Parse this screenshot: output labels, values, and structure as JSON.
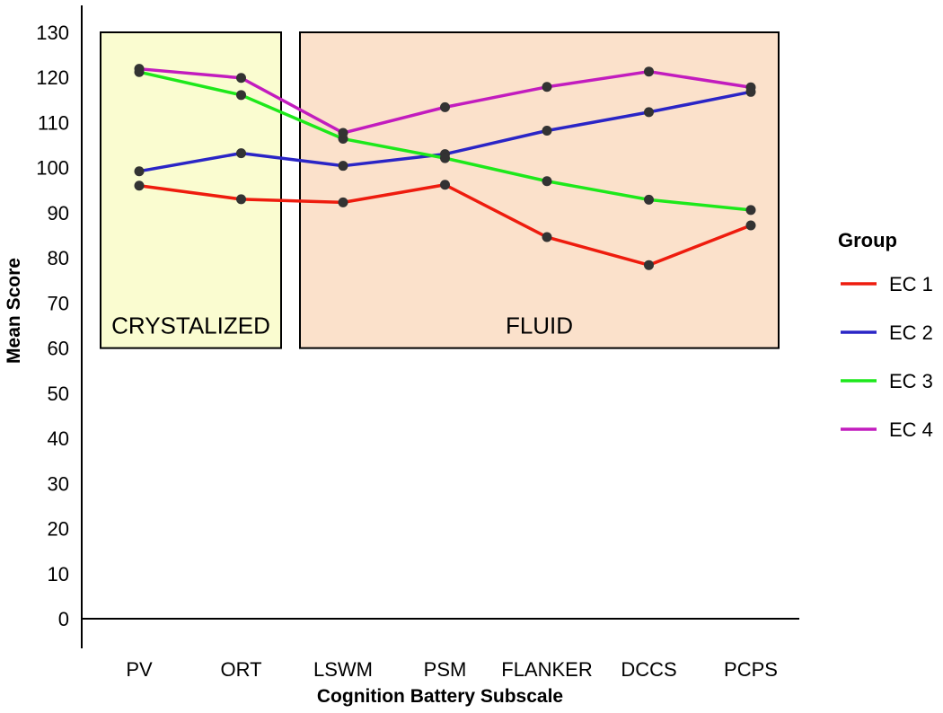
{
  "chart_data": {
    "type": "line",
    "xlabel": "Cognition Battery Subscale",
    "ylabel": "Mean Score",
    "ylim": [
      0,
      130
    ],
    "yticks": [
      0,
      10,
      20,
      30,
      40,
      50,
      60,
      70,
      80,
      90,
      100,
      110,
      120,
      130
    ],
    "categories": [
      "PV",
      "ORT",
      "LSWM",
      "PSM",
      "FLANKER",
      "DCCS",
      "PCPS"
    ],
    "grid": false,
    "legend": {
      "title": "Group",
      "placement": "right"
    },
    "regions": [
      {
        "label": "CRYSTALIZED",
        "from": "PV",
        "to": "ORT",
        "ymin": 60,
        "ymax": 130,
        "color": "#fafcd0"
      },
      {
        "label": "FLUID",
        "from": "LSWM",
        "to": "PCPS",
        "ymin": 60,
        "ymax": 130,
        "color": "#fbe1cb"
      }
    ],
    "series": [
      {
        "name": "EC 1",
        "color": "#ee1c0e",
        "values": [
          96,
          93,
          92.3,
          96.2,
          84.6,
          78.4,
          87.2
        ]
      },
      {
        "name": "EC 2",
        "color": "#2a25c6",
        "values": [
          99.2,
          103.2,
          100.4,
          103,
          108.2,
          112.3,
          116.8
        ]
      },
      {
        "name": "EC 3",
        "color": "#1de81b",
        "values": [
          121.2,
          116.1,
          106.4,
          102.1,
          97,
          92.9,
          90.6
        ]
      },
      {
        "name": "EC 4",
        "color": "#c21cbe",
        "values": [
          121.9,
          119.9,
          107.7,
          113.4,
          117.9,
          121.3,
          117.8
        ]
      }
    ]
  }
}
